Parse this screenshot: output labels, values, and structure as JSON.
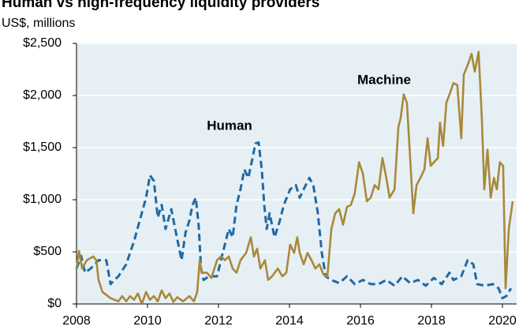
{
  "chart_data": {
    "type": "line",
    "title": "Human vs high-frequency liquidity providers",
    "subtitle": "US$, millions",
    "xlim": [
      2008,
      2020.4
    ],
    "xticks": [
      2008,
      2010,
      2012,
      2014,
      2016,
      2018,
      2020
    ],
    "ylim": [
      0,
      2500
    ],
    "yticks": [
      {
        "value": 0,
        "label": "$0"
      },
      {
        "value": 500,
        "label": "$500"
      },
      {
        "value": 1000,
        "label": "$1,000"
      },
      {
        "value": 1500,
        "label": "$1,500"
      },
      {
        "value": 2000,
        "label": "$2,000"
      },
      {
        "value": 2500,
        "label": "$2,500"
      }
    ],
    "grid": true,
    "series": [
      {
        "name": "Human",
        "color": "#1f6aa5",
        "dashed": true,
        "x": [
          2008.0,
          2008.13,
          2008.24,
          2008.4,
          2008.62,
          2008.84,
          2008.96,
          2009.07,
          2009.18,
          2009.4,
          2009.51,
          2009.62,
          2009.78,
          2009.96,
          2010.07,
          2010.18,
          2010.29,
          2010.4,
          2010.51,
          2010.67,
          2010.78,
          2010.96,
          2011.07,
          2011.18,
          2011.27,
          2011.36,
          2011.44,
          2011.51,
          2011.58,
          2011.73,
          2011.96,
          2012.07,
          2012.18,
          2012.29,
          2012.4,
          2012.51,
          2012.62,
          2012.73,
          2012.84,
          2012.96,
          2013.04,
          2013.13,
          2013.22,
          2013.29,
          2013.36,
          2013.44,
          2013.58,
          2013.73,
          2013.84,
          2014.02,
          2014.18,
          2014.29,
          2014.4,
          2014.56,
          2014.67,
          2014.8,
          2014.91,
          2015.02,
          2015.18,
          2015.4,
          2015.62,
          2015.84,
          2016.07,
          2016.29,
          2016.51,
          2016.73,
          2016.96,
          2017.18,
          2017.4,
          2017.62,
          2017.84,
          2018.07,
          2018.29,
          2018.51,
          2018.62,
          2018.84,
          2019.02,
          2019.18,
          2019.29,
          2019.51,
          2019.73,
          2019.89,
          2020.0,
          2020.11,
          2020.24
        ],
        "values": [
          340,
          460,
          300,
          340,
          420,
          420,
          190,
          230,
          265,
          380,
          490,
          600,
          800,
          1020,
          1235,
          1180,
          830,
          950,
          720,
          910,
          720,
          420,
          680,
          800,
          950,
          1020,
          760,
          340,
          230,
          265,
          265,
          420,
          570,
          720,
          640,
          950,
          1100,
          1290,
          1210,
          1400,
          1540,
          1550,
          1290,
          950,
          720,
          870,
          640,
          800,
          950,
          1100,
          1140,
          1020,
          1100,
          1210,
          1140,
          870,
          490,
          265,
          230,
          200,
          265,
          190,
          230,
          190,
          190,
          230,
          175,
          265,
          200,
          230,
          175,
          250,
          190,
          300,
          230,
          265,
          420,
          380,
          190,
          175,
          190,
          150,
          55,
          75,
          150
        ]
      },
      {
        "name": "Machine",
        "color": "#a8893a",
        "dashed": false,
        "x": [
          2008.0,
          2008.07,
          2008.16,
          2008.29,
          2008.47,
          2008.56,
          2008.62,
          2008.73,
          2008.96,
          2009.18,
          2009.29,
          2009.4,
          2009.51,
          2009.62,
          2009.73,
          2009.84,
          2009.96,
          2010.07,
          2010.18,
          2010.29,
          2010.4,
          2010.51,
          2010.62,
          2010.73,
          2010.84,
          2011.0,
          2011.18,
          2011.31,
          2011.4,
          2011.47,
          2011.53,
          2011.67,
          2011.8,
          2011.96,
          2012.07,
          2012.18,
          2012.29,
          2012.4,
          2012.51,
          2012.62,
          2012.78,
          2012.91,
          2013.0,
          2013.09,
          2013.18,
          2013.31,
          2013.4,
          2013.51,
          2013.67,
          2013.8,
          2013.91,
          2014.02,
          2014.13,
          2014.22,
          2014.29,
          2014.4,
          2014.51,
          2014.62,
          2014.73,
          2014.84,
          2014.96,
          2015.07,
          2015.18,
          2015.29,
          2015.4,
          2015.51,
          2015.62,
          2015.73,
          2015.84,
          2015.96,
          2016.07,
          2016.18,
          2016.29,
          2016.4,
          2016.51,
          2016.62,
          2016.73,
          2016.82,
          2016.96,
          2017.07,
          2017.13,
          2017.22,
          2017.31,
          2017.4,
          2017.49,
          2017.58,
          2017.69,
          2017.8,
          2017.89,
          2017.98,
          2018.07,
          2018.18,
          2018.24,
          2018.33,
          2018.42,
          2018.51,
          2018.62,
          2018.73,
          2018.84,
          2018.91,
          2019.04,
          2019.13,
          2019.22,
          2019.33,
          2019.42,
          2019.49,
          2019.58,
          2019.67,
          2019.76,
          2019.84,
          2019.93,
          2020.02,
          2020.09,
          2020.18,
          2020.29
        ],
        "values": [
          340,
          510,
          340,
          420,
          455,
          420,
          230,
          115,
          55,
          25,
          75,
          25,
          75,
          40,
          100,
          0,
          115,
          40,
          75,
          25,
          130,
          55,
          100,
          20,
          65,
          25,
          75,
          25,
          115,
          420,
          300,
          300,
          250,
          420,
          455,
          420,
          455,
          340,
          300,
          420,
          490,
          640,
          455,
          530,
          340,
          420,
          230,
          265,
          340,
          265,
          300,
          570,
          490,
          640,
          490,
          380,
          490,
          420,
          340,
          380,
          280,
          265,
          720,
          870,
          910,
          760,
          930,
          950,
          1060,
          1360,
          1250,
          985,
          1020,
          1140,
          1100,
          1400,
          1210,
          1020,
          1100,
          1700,
          1780,
          2010,
          1930,
          1400,
          870,
          1140,
          1210,
          1290,
          1590,
          1325,
          1360,
          1400,
          1740,
          1515,
          1930,
          2010,
          2120,
          2100,
          1590,
          2200,
          2310,
          2400,
          2230,
          2420,
          1780,
          1100,
          1480,
          1020,
          1210,
          1100,
          1360,
          1325,
          150,
          720,
          985
        ]
      }
    ]
  }
}
